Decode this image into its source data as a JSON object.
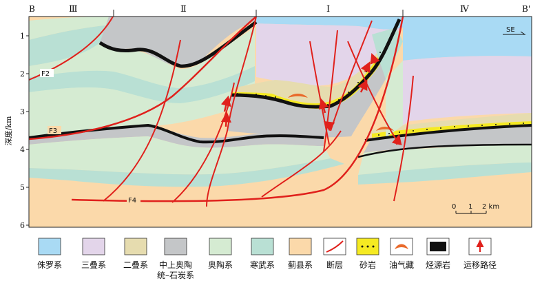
{
  "section": {
    "start_label": "B",
    "end_label": "B'",
    "direction": "SE",
    "zones": [
      "Ⅲ",
      "Ⅱ",
      "Ⅰ",
      "Ⅳ"
    ]
  },
  "depth_axis": {
    "title": "深度/km",
    "ticks": [
      "1",
      "2",
      "3",
      "4",
      "5",
      "6"
    ]
  },
  "faults": [
    "F2",
    "F3",
    "F4"
  ],
  "scale_bar": {
    "ticks": [
      "0",
      "1",
      "2 km"
    ]
  },
  "legend": [
    {
      "key": "jurassic",
      "label": "侏罗系",
      "color": "#a9daf4"
    },
    {
      "key": "triassic",
      "label": "三叠系",
      "color": "#e3d5ea"
    },
    {
      "key": "permian",
      "label": "二叠系",
      "color": "#e6dcaf"
    },
    {
      "key": "carb_ord",
      "label": "中上奥陶",
      "label2": "统–石炭系",
      "color": "#c4c6c8"
    },
    {
      "key": "ordovician",
      "label": "奥陶系",
      "color": "#d5ebd2"
    },
    {
      "key": "cambrian",
      "label": "寒武系",
      "color": "#b9e0d4"
    },
    {
      "key": "jixian",
      "label": "蓟县系",
      "color": "#fbd9aa"
    },
    {
      "key": "fault",
      "label": "断层"
    },
    {
      "key": "sandstone",
      "label": "砂岩"
    },
    {
      "key": "reservoir",
      "label": "油气藏"
    },
    {
      "key": "source",
      "label": "烃源岩"
    },
    {
      "key": "migration",
      "label": "运移路径"
    }
  ]
}
